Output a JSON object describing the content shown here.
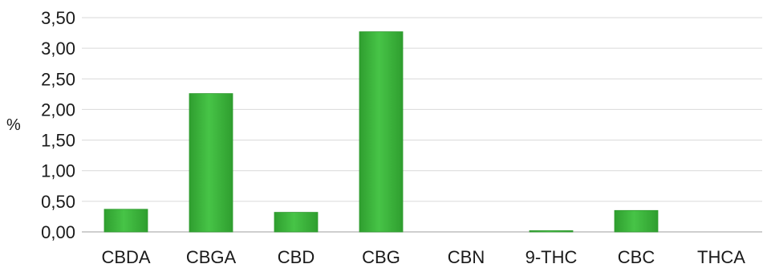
{
  "chart_data": {
    "type": "bar",
    "title": "",
    "xlabel": "",
    "ylabel": "%",
    "categories": [
      "CBDA",
      "CBGA",
      "CBD",
      "CBG",
      "CBN",
      "9-THC",
      "CBC",
      "THCA"
    ],
    "values": [
      0.37,
      2.26,
      0.32,
      3.27,
      0.0,
      0.02,
      0.35,
      0.0
    ],
    "ylim": [
      0,
      3.5
    ],
    "yticks": [
      0,
      0.5,
      1.0,
      1.5,
      2.0,
      2.5,
      3.0,
      3.5
    ],
    "ytick_labels": [
      "0,00",
      "0,50",
      "1,00",
      "1,50",
      "2,00",
      "2,50",
      "3,00",
      "3,50"
    ],
    "grid": true,
    "legend": "none",
    "colors": {
      "bar": "#3cb83c",
      "bar_dark": "#2e9a2e",
      "grid": "#d9d9d9",
      "axis": "#bfbfbf"
    }
  }
}
